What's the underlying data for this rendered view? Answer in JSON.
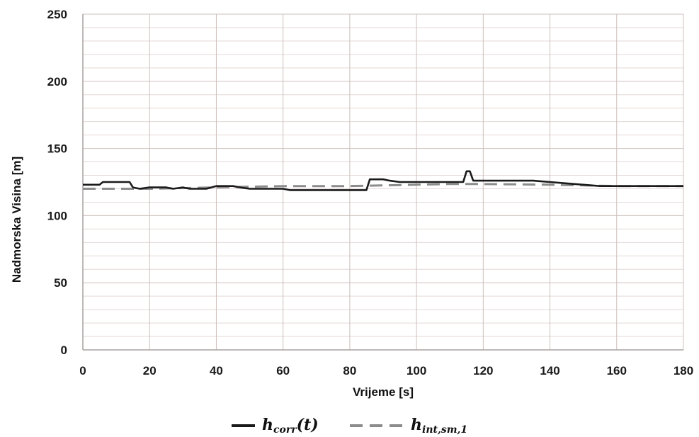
{
  "chart_data": {
    "type": "line",
    "title": "",
    "xlabel": "Vrijeme [s]",
    "ylabel": "Nadmorska Visina [m]",
    "xlim": [
      0,
      180
    ],
    "ylim": [
      0,
      250
    ],
    "xticks": [
      0,
      20,
      40,
      60,
      80,
      100,
      120,
      140,
      160,
      180
    ],
    "yticks": [
      0,
      50,
      100,
      150,
      200,
      250
    ],
    "y_minor_step": 10,
    "grid": true,
    "legend_position": "bottom-center",
    "series": [
      {
        "name": "h_corr(t)",
        "label_main": "h",
        "label_sub": "corr",
        "label_suffix": "(t)",
        "style": "solid",
        "color": "#1a1a1a",
        "x": [
          0,
          5,
          6,
          14,
          15,
          17,
          20,
          25,
          27,
          30,
          32,
          35,
          37,
          40,
          45,
          47,
          50,
          55,
          60,
          62,
          65,
          70,
          75,
          80,
          85,
          86,
          87,
          90,
          92,
          95,
          100,
          105,
          110,
          113,
          114,
          115,
          116,
          117,
          120,
          125,
          130,
          135,
          140,
          145,
          150,
          155,
          160,
          165,
          170,
          180
        ],
        "y": [
          123,
          123,
          125,
          125,
          121,
          120,
          121,
          121,
          120,
          121,
          120,
          120,
          120,
          122,
          122,
          121,
          120,
          120,
          120,
          119,
          119,
          119,
          119,
          119,
          119,
          127,
          127,
          127,
          126,
          125,
          125,
          125,
          125,
          125,
          125,
          133,
          133,
          126,
          126,
          126,
          126,
          126,
          125,
          124,
          123,
          122,
          122,
          122,
          122,
          122
        ]
      },
      {
        "name": "h_int,sm,1",
        "label_main": "h",
        "label_sub": "int,sm,1",
        "label_suffix": "",
        "style": "dashed",
        "color": "#8c8c8c",
        "x": [
          0,
          20,
          40,
          60,
          80,
          100,
          110,
          120,
          140,
          160,
          180
        ],
        "y": [
          120,
          120,
          121,
          122,
          122,
          123,
          123.5,
          123.5,
          123,
          122,
          122
        ]
      }
    ]
  }
}
